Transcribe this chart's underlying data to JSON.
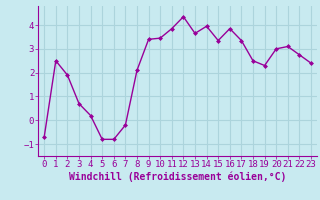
{
  "x": [
    0,
    1,
    2,
    3,
    4,
    5,
    6,
    7,
    8,
    9,
    10,
    11,
    12,
    13,
    14,
    15,
    16,
    17,
    18,
    19,
    20,
    21,
    22,
    23
  ],
  "y": [
    -0.7,
    2.5,
    1.9,
    0.7,
    0.2,
    -0.8,
    -0.8,
    -0.2,
    2.1,
    3.4,
    3.45,
    3.85,
    4.35,
    3.65,
    3.95,
    3.35,
    3.85,
    3.35,
    2.5,
    2.3,
    3.0,
    3.1,
    2.75,
    2.4
  ],
  "line_color": "#990099",
  "marker": "D",
  "marker_size": 2,
  "bg_color": "#c8eaf0",
  "grid_color": "#acd4dc",
  "xlabel": "Windchill (Refroidissement éolien,°C)",
  "ylim": [
    -1.5,
    4.8
  ],
  "xlim": [
    -0.5,
    23.5
  ],
  "yticks": [
    -1,
    0,
    1,
    2,
    3,
    4
  ],
  "xticks": [
    0,
    1,
    2,
    3,
    4,
    5,
    6,
    7,
    8,
    9,
    10,
    11,
    12,
    13,
    14,
    15,
    16,
    17,
    18,
    19,
    20,
    21,
    22,
    23
  ],
  "tick_color": "#990099",
  "xlabel_fontsize": 7.0,
  "tick_fontsize": 6.5,
  "spine_color": "#990099",
  "line_width": 1.0
}
